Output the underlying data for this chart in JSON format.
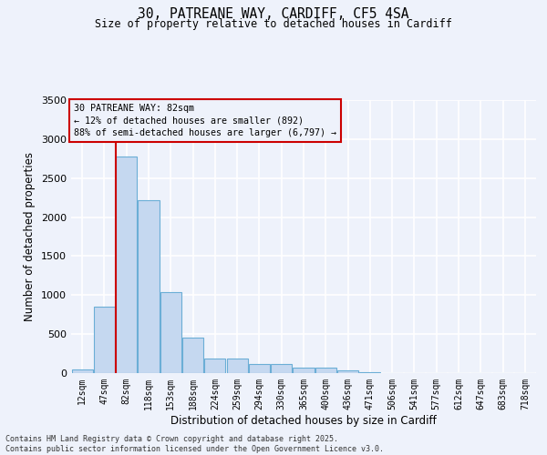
{
  "title_line1": "30, PATREANE WAY, CARDIFF, CF5 4SA",
  "title_line2": "Size of property relative to detached houses in Cardiff",
  "xlabel": "Distribution of detached houses by size in Cardiff",
  "ylabel": "Number of detached properties",
  "categories": [
    "12sqm",
    "47sqm",
    "82sqm",
    "118sqm",
    "153sqm",
    "188sqm",
    "224sqm",
    "259sqm",
    "294sqm",
    "330sqm",
    "365sqm",
    "400sqm",
    "436sqm",
    "471sqm",
    "506sqm",
    "541sqm",
    "577sqm",
    "612sqm",
    "647sqm",
    "683sqm",
    "718sqm"
  ],
  "values": [
    50,
    855,
    2780,
    2220,
    1040,
    460,
    185,
    185,
    115,
    115,
    70,
    70,
    30,
    15,
    5,
    0,
    0,
    0,
    0,
    0,
    0
  ],
  "bar_color": "#c5d8f0",
  "bar_edge_color": "#6baed6",
  "vline_x_index": 2,
  "vline_color": "#cc0000",
  "annotation_text": "30 PATREANE WAY: 82sqm\n← 12% of detached houses are smaller (892)\n88% of semi-detached houses are larger (6,797) →",
  "annotation_box_color": "#cc0000",
  "annotation_bg_color": "#eef2fb",
  "ylim": [
    0,
    3500
  ],
  "yticks": [
    0,
    500,
    1000,
    1500,
    2000,
    2500,
    3000,
    3500
  ],
  "background_color": "#eef2fb",
  "grid_color": "#ffffff",
  "footer_line1": "Contains HM Land Registry data © Crown copyright and database right 2025.",
  "footer_line2": "Contains public sector information licensed under the Open Government Licence v3.0."
}
